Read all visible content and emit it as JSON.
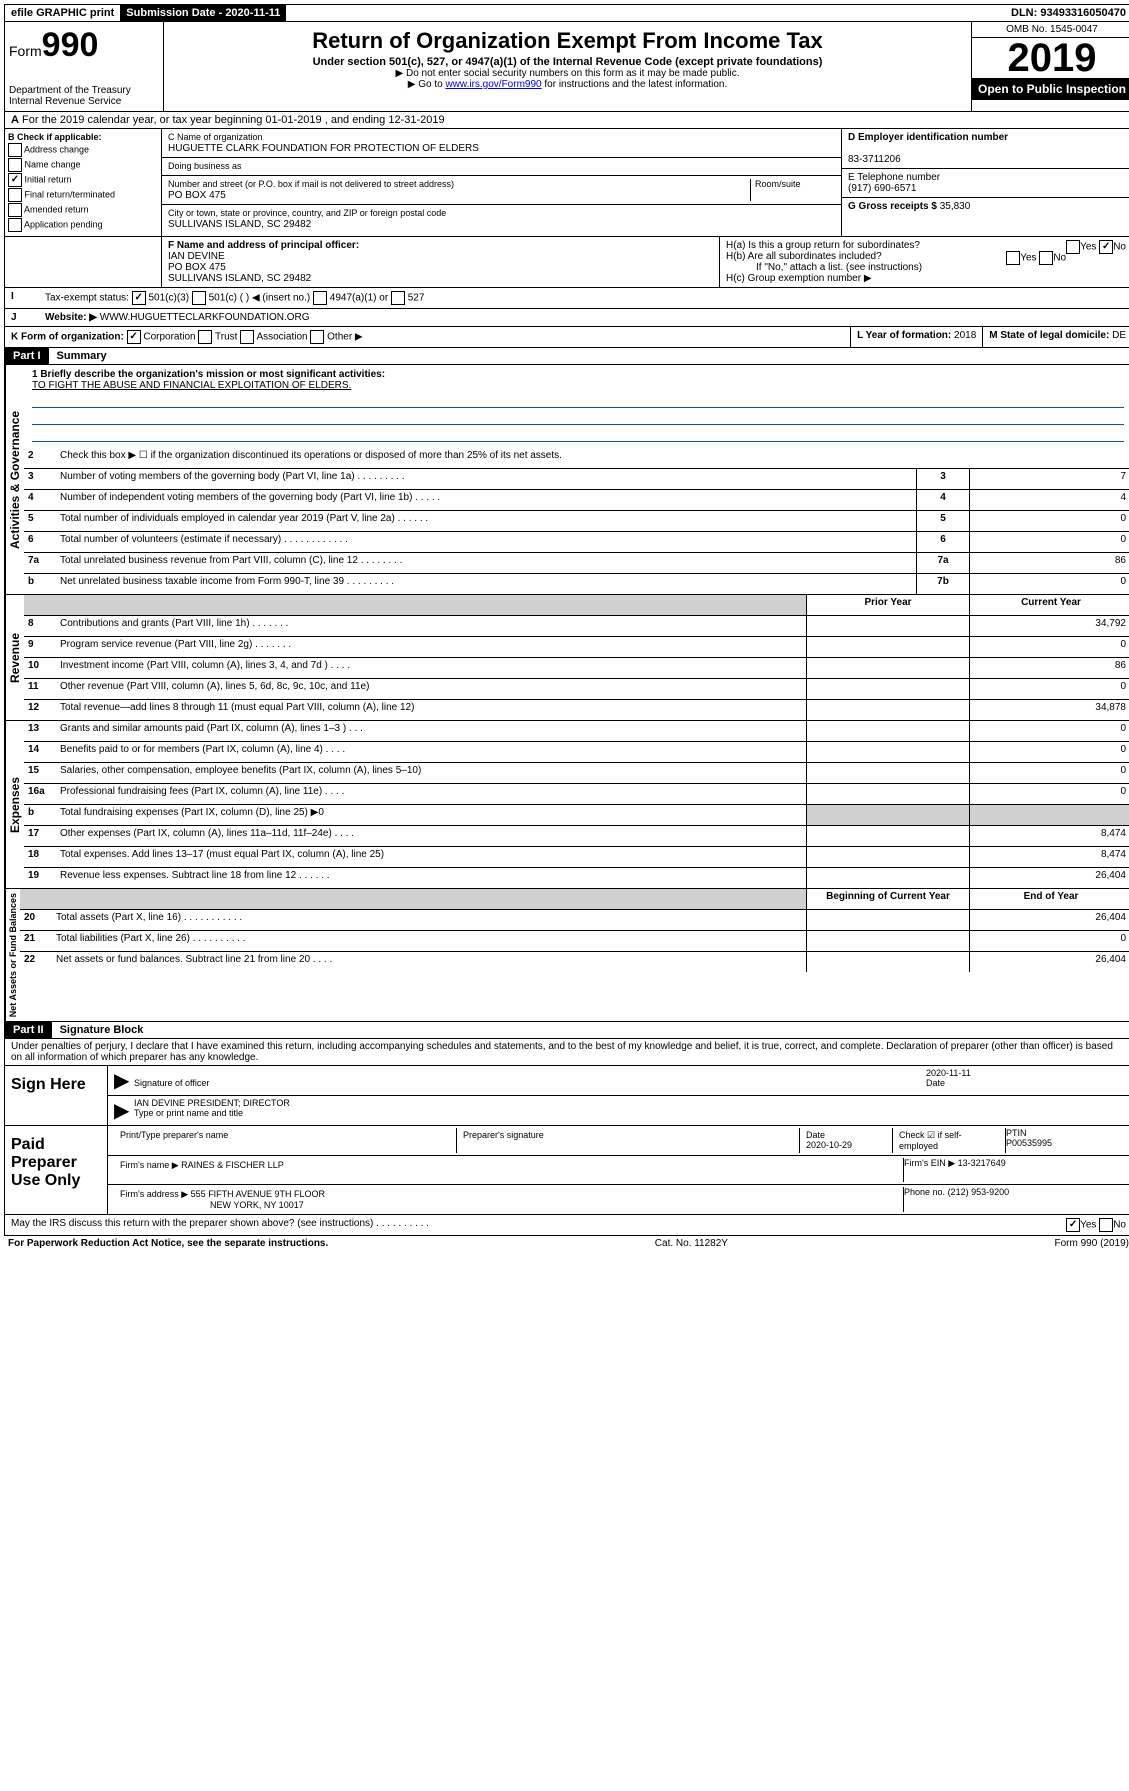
{
  "topbar": {
    "efile": "efile GRAPHIC print",
    "submission_label": "Submission Date - 2020-11-11",
    "dln": "DLN: 93493316050470"
  },
  "header": {
    "form_prefix": "Form",
    "form_num": "990",
    "dept": "Department of the Treasury",
    "irs": "Internal Revenue Service",
    "title": "Return of Organization Exempt From Income Tax",
    "subtitle": "Under section 501(c), 527, or 4947(a)(1) of the Internal Revenue Code (except private foundations)",
    "note1": "▶ Do not enter social security numbers on this form as it may be made public.",
    "note2_pre": "▶ Go to ",
    "note2_link": "www.irs.gov/Form990",
    "note2_post": " for instructions and the latest information.",
    "omb": "OMB No. 1545-0047",
    "year": "2019",
    "open": "Open to Public Inspection"
  },
  "line_a": "For the 2019 calendar year, or tax year beginning 01-01-2019    , and ending 12-31-2019",
  "box_b": {
    "label": "B Check if applicable:",
    "opts": [
      "Address change",
      "Name change",
      "Initial return",
      "Final return/terminated",
      "Amended return",
      "Application pending"
    ],
    "checked": "Initial return"
  },
  "box_c": {
    "label": "C Name of organization",
    "name": "HUGUETTE CLARK FOUNDATION FOR PROTECTION OF ELDERS",
    "dba": "Doing business as",
    "addr_label": "Number and street (or P.O. box if mail is not delivered to street address)",
    "room": "Room/suite",
    "addr": "PO BOX 475",
    "city_label": "City or town, state or province, country, and ZIP or foreign postal code",
    "city": "SULLIVANS ISLAND, SC  29482"
  },
  "box_d": {
    "label": "D Employer identification number",
    "ein": "83-3711206"
  },
  "box_e": {
    "label": "E Telephone number",
    "phone": "(917) 690-6571"
  },
  "box_g": {
    "label": "G Gross receipts $",
    "val": "35,830"
  },
  "box_f": {
    "label": "F Name and address of principal officer:",
    "name": "IAN DEVINE",
    "addr1": "PO BOX 475",
    "addr2": "SULLIVANS ISLAND, SC  29482"
  },
  "box_h": {
    "a": "H(a)  Is this a group return for subordinates?",
    "b": "H(b)  Are all subordinates included?",
    "note": "If \"No,\" attach a list. (see instructions)",
    "c": "H(c)  Group exemption number ▶"
  },
  "box_i": {
    "label": "Tax-exempt status:",
    "opts": [
      "501(c)(3)",
      "501(c) (  ) ◀ (insert no.)",
      "4947(a)(1) or",
      "527"
    ]
  },
  "box_j": {
    "label": "Website: ▶",
    "val": "WWW.HUGUETTECLARKFOUNDATION.ORG"
  },
  "box_k": {
    "label": "K Form of organization:",
    "opts": [
      "Corporation",
      "Trust",
      "Association",
      "Other ▶"
    ]
  },
  "box_l": {
    "label": "L Year of formation:",
    "val": "2018"
  },
  "box_m": {
    "label": "M State of legal domicile:",
    "val": "DE"
  },
  "part1": {
    "header": "Part I",
    "title": "Summary",
    "q1": "1  Briefly describe the organization's mission or most significant activities:",
    "mission": "TO FIGHT THE ABUSE AND FINANCIAL EXPLOITATION OF ELDERS.",
    "q2": "Check this box ▶ ☐  if the organization discontinued its operations or disposed of more than 25% of its net assets.",
    "lines": [
      {
        "n": "3",
        "d": "Number of voting members of the governing body (Part VI, line 1a)  .    .    .    .    .    .    .    .    .",
        "c": "3",
        "v": "7"
      },
      {
        "n": "4",
        "d": "Number of independent voting members of the governing body (Part VI, line 1b)  .    .    .    .    .",
        "c": "4",
        "v": "4"
      },
      {
        "n": "5",
        "d": "Total number of individuals employed in calendar year 2019 (Part V, line 2a)  .    .    .    .    .    .",
        "c": "5",
        "v": "0"
      },
      {
        "n": "6",
        "d": "Total number of volunteers (estimate if necessary)  .    .    .    .    .    .    .    .    .    .    .    .",
        "c": "6",
        "v": "0"
      },
      {
        "n": "7a",
        "d": "Total unrelated business revenue from Part VIII, column (C), line 12  .    .    .    .    .    .    .    .",
        "c": "7a",
        "v": "86"
      },
      {
        "n": "b",
        "d": "Net unrelated business taxable income from Form 990-T, line 39  .    .    .    .    .    .    .    .    .",
        "c": "7b",
        "v": "0"
      }
    ],
    "col_headers": {
      "prior": "Prior Year",
      "current": "Current Year"
    },
    "revenue": [
      {
        "n": "8",
        "d": "Contributions and grants (Part VIII, line 1h)  .    .    .    .    .    .    .",
        "p": "",
        "c": "34,792"
      },
      {
        "n": "9",
        "d": "Program service revenue (Part VIII, line 2g)  .    .    .    .    .    .    .",
        "p": "",
        "c": "0"
      },
      {
        "n": "10",
        "d": "Investment income (Part VIII, column (A), lines 3, 4, and 7d )  .    .    .    .",
        "p": "",
        "c": "86"
      },
      {
        "n": "11",
        "d": "Other revenue (Part VIII, column (A), lines 5, 6d, 8c, 9c, 10c, and 11e)",
        "p": "",
        "c": "0"
      },
      {
        "n": "12",
        "d": "Total revenue—add lines 8 through 11 (must equal Part VIII, column (A), line 12)",
        "p": "",
        "c": "34,878"
      }
    ],
    "expenses": [
      {
        "n": "13",
        "d": "Grants and similar amounts paid (Part IX, column (A), lines 1–3 )  .    .    .",
        "p": "",
        "c": "0"
      },
      {
        "n": "14",
        "d": "Benefits paid to or for members (Part IX, column (A), line 4)  .    .    .    .",
        "p": "",
        "c": "0"
      },
      {
        "n": "15",
        "d": "Salaries, other compensation, employee benefits (Part IX, column (A), lines 5–10)",
        "p": "",
        "c": "0"
      },
      {
        "n": "16a",
        "d": "Professional fundraising fees (Part IX, column (A), line 11e)  .    .    .    .",
        "p": "",
        "c": "0"
      },
      {
        "n": "b",
        "d": "Total fundraising expenses (Part IX, column (D), line 25) ▶0",
        "p": "gray",
        "c": "gray"
      },
      {
        "n": "17",
        "d": "Other expenses (Part IX, column (A), lines 11a–11d, 11f–24e)  .    .    .    .",
        "p": "",
        "c": "8,474"
      },
      {
        "n": "18",
        "d": "Total expenses. Add lines 13–17 (must equal Part IX, column (A), line 25)",
        "p": "",
        "c": "8,474"
      },
      {
        "n": "19",
        "d": "Revenue less expenses. Subtract line 18 from line 12  .    .    .    .    .    .",
        "p": "",
        "c": "26,404"
      }
    ],
    "net_headers": {
      "begin": "Beginning of Current Year",
      "end": "End of Year"
    },
    "net": [
      {
        "n": "20",
        "d": "Total assets (Part X, line 16)  .    .    .    .    .    .    .    .    .    .    .",
        "p": "",
        "c": "26,404"
      },
      {
        "n": "21",
        "d": "Total liabilities (Part X, line 26)  .    .    .    .    .    .    .    .    .    .",
        "p": "",
        "c": "0"
      },
      {
        "n": "22",
        "d": "Net assets or fund balances. Subtract line 21 from line 20  .    .    .    .",
        "p": "",
        "c": "26,404"
      }
    ]
  },
  "vlabels": {
    "gov": "Activities & Governance",
    "rev": "Revenue",
    "exp": "Expenses",
    "net": "Net Assets or Fund Balances"
  },
  "part2": {
    "header": "Part II",
    "title": "Signature Block",
    "perjury": "Under penalties of perjury, I declare that I have examined this return, including accompanying schedules and statements, and to the best of my knowledge and belief, it is true, correct, and complete. Declaration of preparer (other than officer) is based on all information of which preparer has any knowledge.",
    "sign_here": "Sign Here",
    "sig_officer": "Signature of officer",
    "date": "2020-11-11",
    "date_label": "Date",
    "name_title": "IAN DEVINE  PRESIDENT; DIRECTOR",
    "name_label": "Type or print name and title",
    "paid": "Paid Preparer Use Only",
    "prep_name_label": "Print/Type preparer's name",
    "prep_sig_label": "Preparer's signature",
    "prep_date_label": "Date",
    "prep_date": "2020-10-29",
    "check_self": "Check ☑ if self-employed",
    "ptin_label": "PTIN",
    "ptin": "P00535995",
    "firm_name_label": "Firm's name    ▶",
    "firm_name": "RAINES & FISCHER LLP",
    "firm_ein_label": "Firm's EIN ▶",
    "firm_ein": "13-3217649",
    "firm_addr_label": "Firm's address ▶",
    "firm_addr": "555 FIFTH AVENUE 9TH FLOOR",
    "firm_city": "NEW YORK, NY  10017",
    "phone_label": "Phone no.",
    "phone": "(212) 953-9200",
    "discuss": "May the IRS discuss this return with the preparer shown above? (see instructions)  .    .    .    .    .    .    .    .    .    ."
  },
  "footer": {
    "paperwork": "For Paperwork Reduction Act Notice, see the separate instructions.",
    "cat": "Cat. No. 11282Y",
    "form": "Form 990 (2019)"
  }
}
